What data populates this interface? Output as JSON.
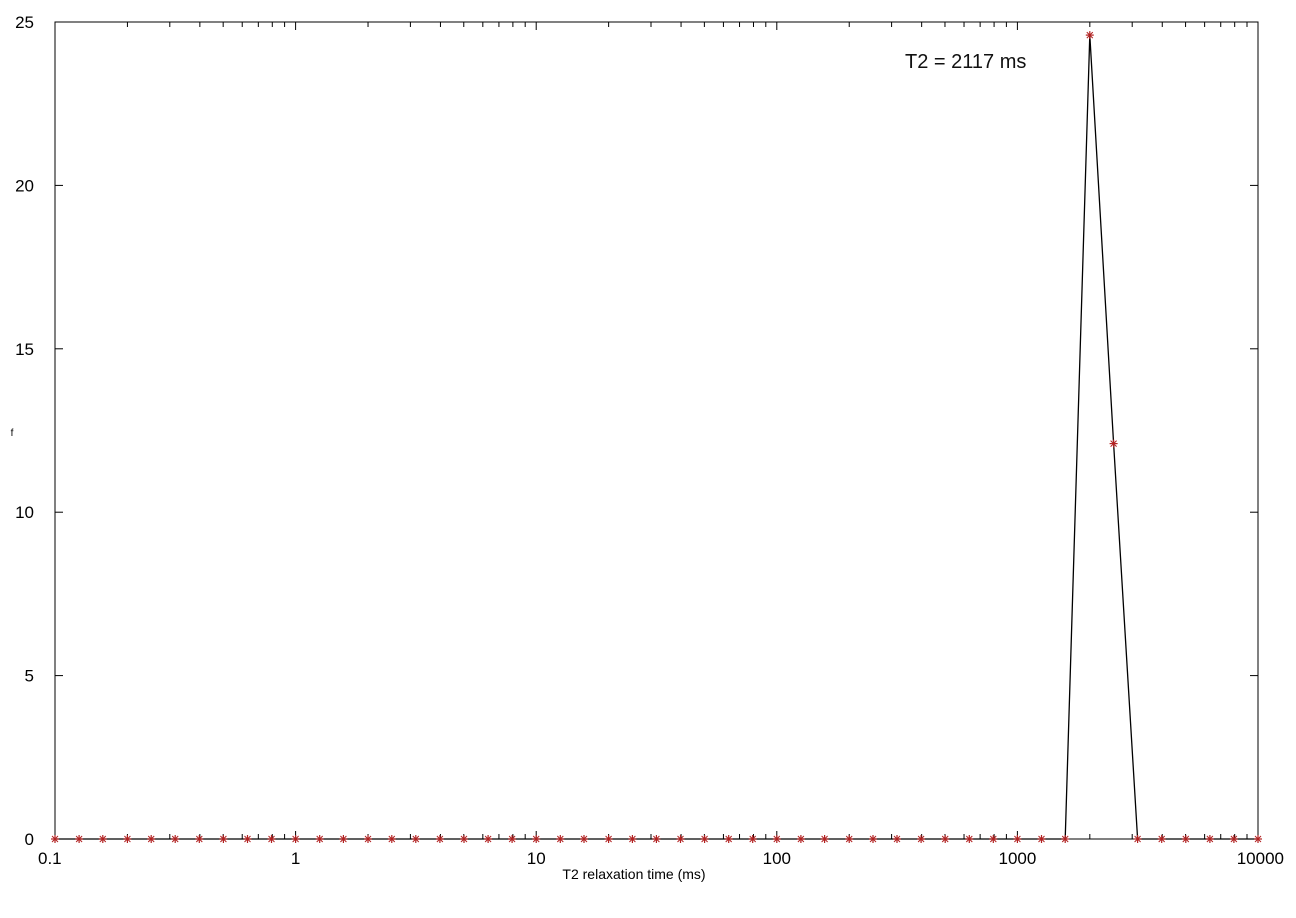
{
  "chart_data": {
    "type": "line",
    "xlabel": "T2 relaxation time (ms)",
    "ylabel": "f",
    "x_scale": "log",
    "xlim": [
      0.1,
      10000
    ],
    "ylim": [
      0,
      25
    ],
    "x_ticks": [
      0.1,
      1,
      10,
      100,
      1000,
      10000
    ],
    "x_tick_labels": [
      "0.1",
      "1",
      "10",
      "100",
      "1000",
      "10000"
    ],
    "y_ticks": [
      0,
      5,
      10,
      15,
      20,
      25
    ],
    "y_tick_labels": [
      "0",
      "5",
      "10",
      "15",
      "20",
      "25"
    ],
    "grid": false,
    "annotation": "T2 = 2117 ms",
    "series": [
      {
        "marker": "*",
        "line_color": "#000000",
        "marker_color": "#b22222",
        "x": [
          0.1,
          0.126,
          0.158,
          0.2,
          0.251,
          0.316,
          0.398,
          0.501,
          0.631,
          0.794,
          1,
          1.26,
          1.58,
          2,
          2.51,
          3.16,
          3.98,
          5.01,
          6.31,
          7.94,
          10,
          12.6,
          15.8,
          20,
          25.1,
          31.6,
          39.8,
          50.1,
          63.1,
          79.4,
          100,
          126,
          158,
          200,
          251,
          316,
          398,
          501,
          631,
          794,
          1000,
          1260,
          1580,
          2000,
          2510,
          3160,
          3980,
          5010,
          6310,
          7940,
          10000
        ],
        "y": [
          0,
          0,
          0,
          0,
          0,
          0,
          0,
          0,
          0,
          0,
          0,
          0,
          0,
          0,
          0,
          0,
          0,
          0,
          0,
          0,
          0,
          0,
          0,
          0,
          0,
          0,
          0,
          0,
          0,
          0,
          0,
          0,
          0,
          0,
          0,
          0,
          0,
          0,
          0,
          0,
          0,
          0,
          0,
          24.6,
          12.1,
          0,
          0,
          0,
          0,
          0,
          0
        ]
      }
    ]
  }
}
